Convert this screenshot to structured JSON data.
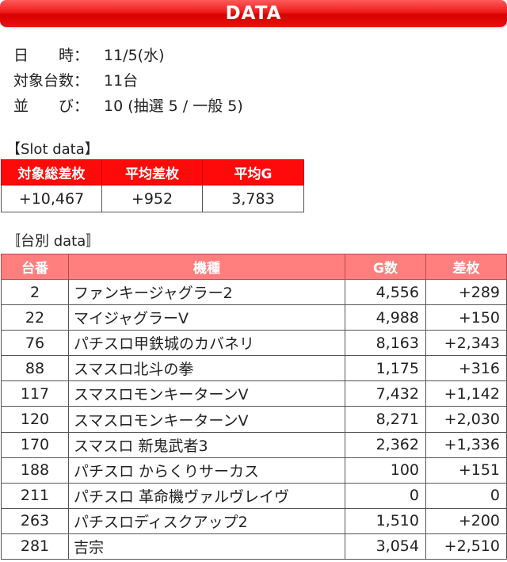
{
  "header": {
    "title": "DATA"
  },
  "info": [
    {
      "label": "日　　時：",
      "value": "11/5(水)"
    },
    {
      "label": "対象台数：",
      "value": "11台"
    },
    {
      "label": "並　　び：",
      "value": "10 (抽選 5 / 一般 5)"
    }
  ],
  "slot_section": {
    "title": "【Slot data】",
    "headers": [
      "対象総差枚",
      "平均差枚",
      "平均G"
    ],
    "values": [
      "+10,467",
      "+952",
      "3,783"
    ]
  },
  "machine_section": {
    "title": "〚台別 data〛",
    "headers": [
      "台番",
      "機種",
      "G数",
      "差枚"
    ],
    "rows": [
      {
        "num": "2",
        "name": "ファンキージャグラー2",
        "games": "4,556",
        "diff": "+289"
      },
      {
        "num": "22",
        "name": "マイジャグラーV",
        "games": "4,988",
        "diff": "+150"
      },
      {
        "num": "76",
        "name": "パチスロ甲鉄城のカバネリ",
        "games": "8,163",
        "diff": "+2,343"
      },
      {
        "num": "88",
        "name": "スマスロ北斗の拳",
        "games": "1,175",
        "diff": "+316"
      },
      {
        "num": "117",
        "name": "スマスロモンキーターンV",
        "games": "7,432",
        "diff": "+1,142"
      },
      {
        "num": "120",
        "name": "スマスロモンキーターンV",
        "games": "8,271",
        "diff": "+2,030"
      },
      {
        "num": "170",
        "name": "スマスロ 新鬼武者3",
        "games": "2,362",
        "diff": "+1,336"
      },
      {
        "num": "188",
        "name": "パチスロ からくりサーカス",
        "games": "100",
        "diff": "+151"
      },
      {
        "num": "211",
        "name": "パチスロ 革命機ヴァルヴレイヴ",
        "games": "0",
        "diff": "0"
      },
      {
        "num": "263",
        "name": "パチスロディスクアップ2",
        "games": "1,510",
        "diff": "+200"
      },
      {
        "num": "281",
        "name": "吉宗",
        "games": "3,054",
        "diff": "+2,510"
      }
    ]
  },
  "colors": {
    "banner": "#ee1c1c",
    "slot_header": "#ff0a0a",
    "machine_header": "#ff7f7f"
  }
}
